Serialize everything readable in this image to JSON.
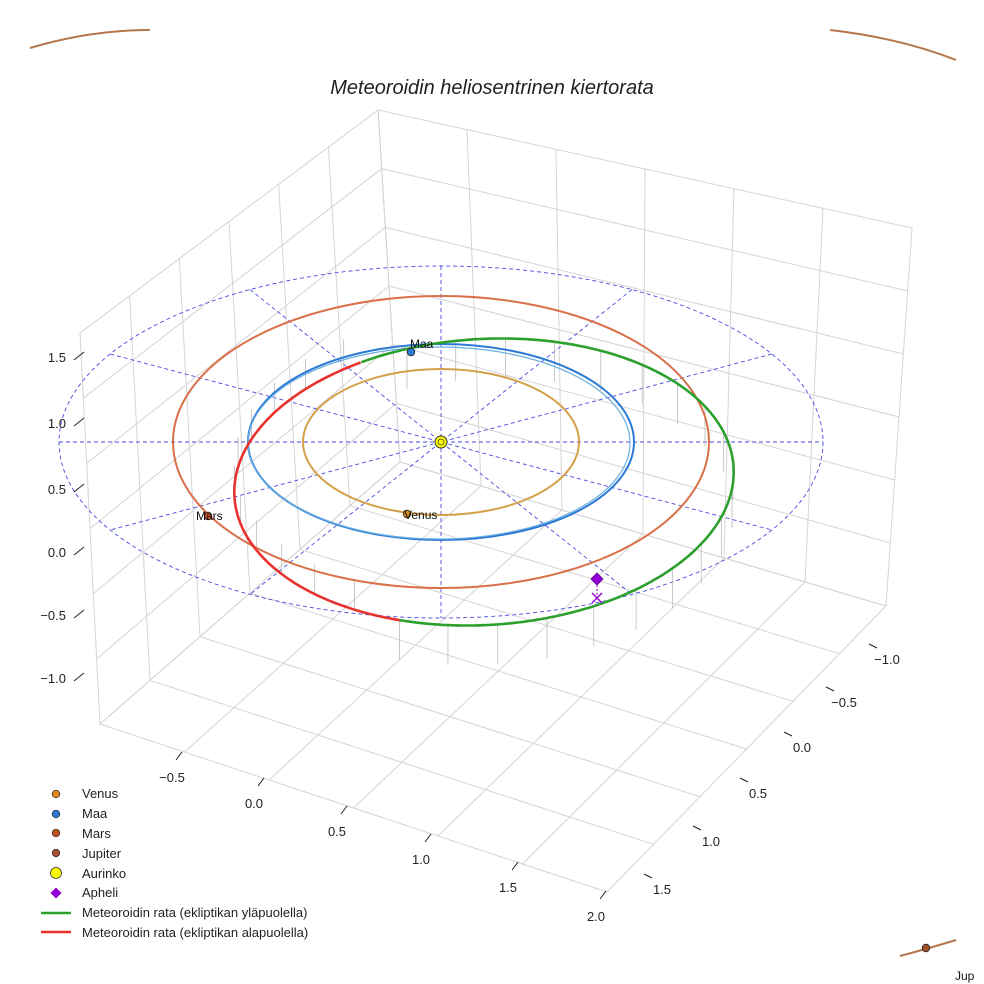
{
  "chart_data": {
    "type": "scatter3d",
    "title": "Meteoroidin heliosentrinen kiertorata",
    "axes": {
      "x_ticks": [
        -0.5,
        0.0,
        0.5,
        1.0,
        1.5,
        2.0
      ],
      "y_ticks": [
        -1.0,
        -0.5,
        0.0,
        0.5,
        1.0,
        1.5
      ],
      "z_ticks": [
        -1.0,
        -0.5,
        0.0,
        0.5,
        1.0,
        1.5
      ],
      "x_tick_labels": [
        "−0.5",
        "0.0",
        "0.5",
        "1.0",
        "1.5",
        "2.0"
      ],
      "y_tick_labels": [
        "−1.0",
        "−0.5",
        "0.0",
        "0.5",
        "1.0",
        "1.5"
      ],
      "z_tick_labels": [
        "−1.0",
        "−0.5",
        "0.0",
        "0.5",
        "1.0",
        "1.5"
      ],
      "grid": true
    },
    "planet_orbits": [
      {
        "name": "Venus",
        "radius_au": 0.72,
        "color": "#d4a04a"
      },
      {
        "name": "Maa",
        "radius_au": 1.0,
        "color": "#2c7ad6"
      },
      {
        "name": "Mars",
        "radius_au": 1.52,
        "color": "#d9704a"
      },
      {
        "name": "Jupiter",
        "radius_au": 5.2,
        "color": "#b5764a"
      }
    ],
    "planets": [
      {
        "name": "Venus",
        "label": "Venus",
        "color": "#d98a1a"
      },
      {
        "name": "Maa",
        "label": "Maa",
        "color": "#2c7ad6"
      },
      {
        "name": "Mars",
        "label": "Mars",
        "color": "#c0501f"
      },
      {
        "name": "Jupiter",
        "label": "Jup",
        "color": "#a0522d"
      }
    ],
    "sun": {
      "name": "Aurinko",
      "color": "#ffff00"
    },
    "apheli": {
      "name": "Apheli",
      "color": "#9400d3"
    },
    "meteoroid": {
      "above_color": "#2ca02c",
      "below_color": "#e8322e",
      "above_label": "Meteoroidin rata (ekliptikan yläpuolella)",
      "below_label": "Meteoroidin rata (ekliptikan alapuolella)"
    },
    "legend_position": "bottom-left",
    "legend": [
      {
        "label": "Venus",
        "symbol": "dot",
        "color": "#d98a1a"
      },
      {
        "label": "Maa",
        "symbol": "dot",
        "color": "#2c7ad6"
      },
      {
        "label": "Mars",
        "symbol": "dot",
        "color": "#c0501f"
      },
      {
        "label": "Jupiter",
        "symbol": "dot",
        "color": "#a0522d"
      },
      {
        "label": "Aurinko",
        "symbol": "sun",
        "color": "#ffff00"
      },
      {
        "label": "Apheli",
        "symbol": "diamond",
        "color": "#9400d3"
      },
      {
        "label": "Meteoroidin rata (ekliptikan yläpuolella)",
        "symbol": "line",
        "color": "#2ca02c"
      },
      {
        "label": "Meteoroidin rata (ekliptikan alapuolella)",
        "symbol": "line",
        "color": "#e8322e"
      }
    ]
  }
}
